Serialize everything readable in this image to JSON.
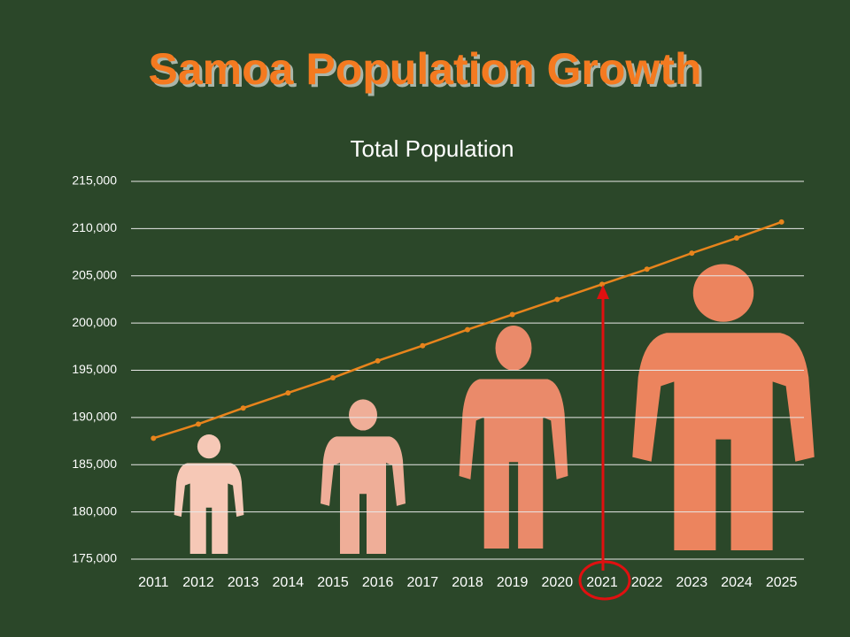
{
  "chart_data": {
    "type": "line",
    "title": "Samoa Population Growth",
    "subtitle": "Total Population",
    "categories": [
      "2011",
      "2012",
      "2013",
      "2014",
      "2015",
      "2016",
      "2017",
      "2018",
      "2019",
      "2020",
      "2021",
      "2022",
      "2023",
      "2024",
      "2025"
    ],
    "series": [
      {
        "name": "Total Population",
        "color": "#e8841c",
        "values": [
          187800,
          189300,
          191000,
          192600,
          194200,
          196000,
          197600,
          199300,
          200900,
          202500,
          204100,
          205700,
          207400,
          209000,
          210700
        ]
      }
    ],
    "ylim": [
      175000,
      215000
    ],
    "yticks": [
      {
        "value": 175000,
        "label": "175,000"
      },
      {
        "value": 180000,
        "label": "180,000"
      },
      {
        "value": 185000,
        "label": "185,000"
      },
      {
        "value": 190000,
        "label": "190,000"
      },
      {
        "value": 195000,
        "label": "195,000"
      },
      {
        "value": 200000,
        "label": "200,000"
      },
      {
        "value": 205000,
        "label": "205,000"
      },
      {
        "value": 210000,
        "label": "210,000"
      },
      {
        "value": 215000,
        "label": "215,000"
      }
    ],
    "grid": true
  }
}
